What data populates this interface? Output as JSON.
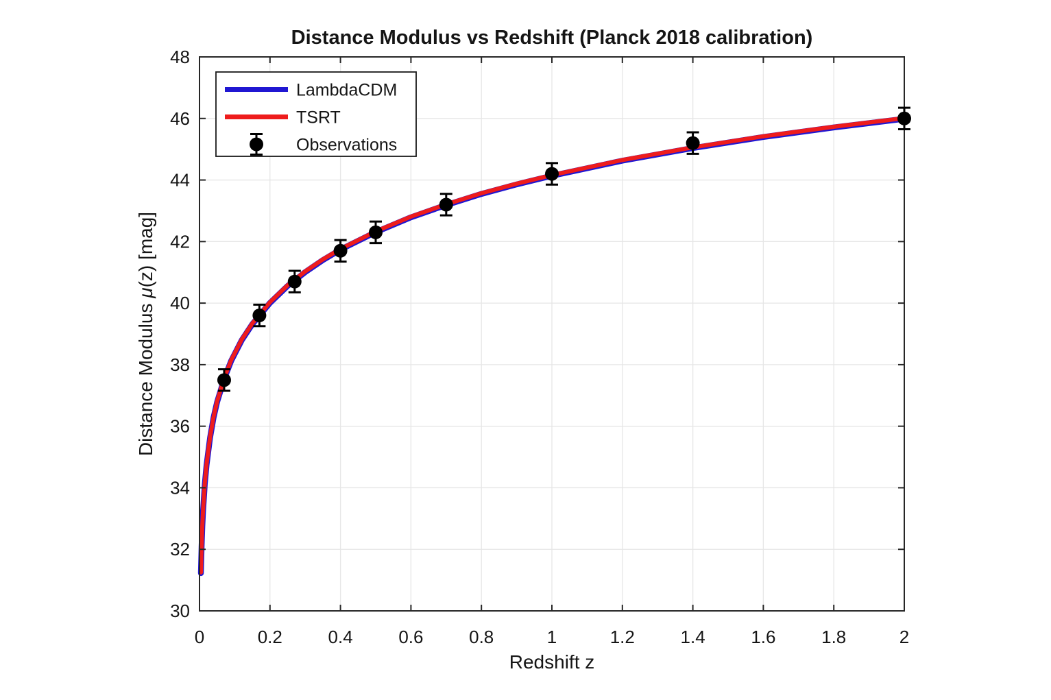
{
  "figure": {
    "background": "#ffffff"
  },
  "chart_data": {
    "type": "line",
    "title": "Distance Modulus vs Redshift (Planck 2018 calibration)",
    "xlabel": "Redshift z",
    "ylabel": "Distance Modulus μ(z) [mag]",
    "ylabel_parts": [
      "Distance Modulus ",
      "μ",
      "(z) [mag]"
    ],
    "xlim": [
      0,
      2
    ],
    "ylim": [
      30,
      48
    ],
    "xticks": [
      0,
      0.2,
      0.4,
      0.6,
      0.8,
      1,
      1.2,
      1.4,
      1.6,
      1.8,
      2
    ],
    "xtick_labels": [
      "0",
      "0.2",
      "0.4",
      "0.6",
      "0.8",
      "1",
      "1.2",
      "1.4",
      "1.6",
      "1.8",
      "2"
    ],
    "yticks": [
      30,
      32,
      34,
      36,
      38,
      40,
      42,
      44,
      46,
      48
    ],
    "ytick_labels": [
      "30",
      "32",
      "34",
      "36",
      "38",
      "40",
      "42",
      "44",
      "46",
      "48"
    ],
    "grid": true,
    "grid_color": "#e6e6e6",
    "axis_color": "#262626",
    "legend": {
      "position": "top-left",
      "entries": [
        {
          "label": "LambdaCDM",
          "type": "line",
          "color": "#2017d2"
        },
        {
          "label": "TSRT",
          "type": "line",
          "color": "#ee1c1c"
        },
        {
          "label": "Observations",
          "type": "errorbar-marker",
          "color": "#000000"
        }
      ]
    },
    "series": [
      {
        "name": "LambdaCDM",
        "color": "#2017d2",
        "line_width": 8.5,
        "x": [
          0.004,
          0.006,
          0.008,
          0.01,
          0.015,
          0.02,
          0.03,
          0.04,
          0.05,
          0.07,
          0.09,
          0.12,
          0.15,
          0.2,
          0.25,
          0.3,
          0.35,
          0.4,
          0.5,
          0.6,
          0.7,
          0.8,
          0.9,
          1.0,
          1.2,
          1.4,
          1.6,
          1.8,
          2.0
        ],
        "y": [
          31.25,
          32.13,
          32.77,
          33.25,
          34.14,
          34.76,
          35.65,
          36.31,
          36.81,
          37.56,
          38.15,
          38.82,
          39.34,
          40.03,
          40.58,
          41.03,
          41.42,
          41.76,
          42.33,
          42.81,
          43.21,
          43.57,
          43.88,
          44.16,
          44.65,
          45.06,
          45.42,
          45.73,
          46.01
        ]
      },
      {
        "name": "TSRT",
        "color": "#ee1c1c",
        "line_width": 6,
        "x": [
          0.004,
          0.006,
          0.008,
          0.01,
          0.015,
          0.02,
          0.03,
          0.04,
          0.05,
          0.07,
          0.09,
          0.12,
          0.15,
          0.2,
          0.25,
          0.3,
          0.35,
          0.4,
          0.5,
          0.6,
          0.7,
          0.8,
          0.9,
          1.0,
          1.2,
          1.4,
          1.6,
          1.8,
          2.0
        ],
        "y": [
          31.25,
          32.13,
          32.77,
          33.25,
          34.14,
          34.76,
          35.65,
          36.31,
          36.81,
          37.56,
          38.15,
          38.82,
          39.34,
          40.03,
          40.58,
          41.03,
          41.42,
          41.76,
          42.33,
          42.81,
          43.21,
          43.57,
          43.88,
          44.16,
          44.65,
          45.06,
          45.42,
          45.73,
          46.01
        ]
      }
    ],
    "observations": {
      "name": "Observations",
      "marker": "filled-circle",
      "color": "#000000",
      "x": [
        0.07,
        0.17,
        0.27,
        0.4,
        0.5,
        0.7,
        1.0,
        1.4,
        2.0
      ],
      "y": [
        37.5,
        39.6,
        40.7,
        41.7,
        42.3,
        43.2,
        44.2,
        45.2,
        46.0
      ],
      "yerr": 0.35
    }
  }
}
